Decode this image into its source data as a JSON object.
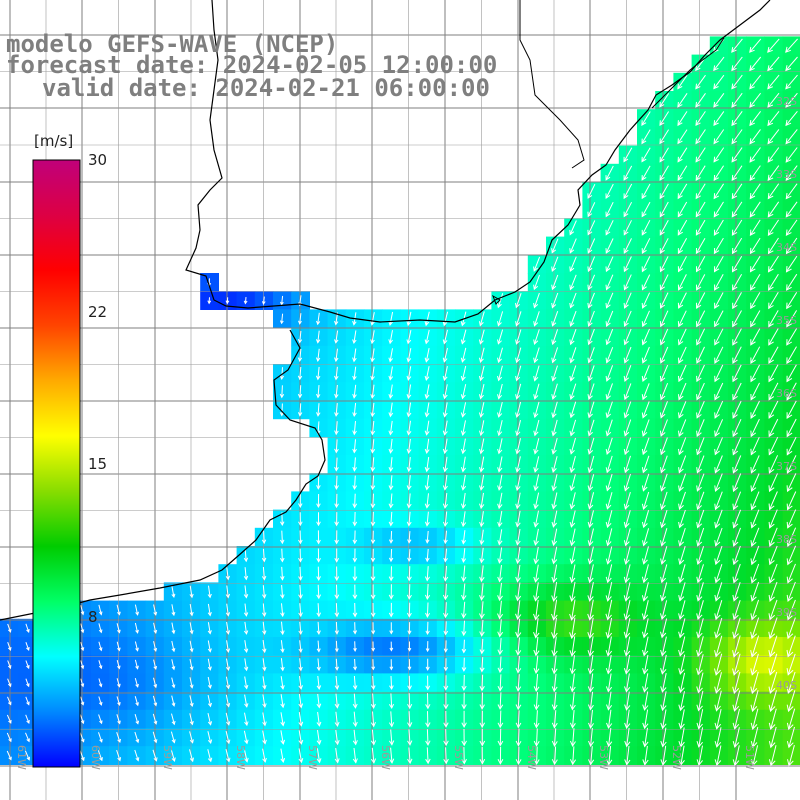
{
  "title": {
    "model": "modelo GEFS-WAVE (NCEP)",
    "forecast": "forecast date: 2024-02-05 12:00:00",
    "valid": "valid date: 2024-02-21 06:00:00"
  },
  "colorbar": {
    "unit": "[m/s]",
    "ticks": [
      "30",
      "22",
      "15",
      "8"
    ],
    "tick_values": [
      30,
      22,
      15,
      8
    ],
    "min": 0,
    "max": 30,
    "colors": [
      "#0000ff",
      "#0088ff",
      "#00ffff",
      "#00ff66",
      "#00cc00",
      "#88dd00",
      "#ffff00",
      "#ffaa00",
      "#ff4400",
      "#ff0000",
      "#dd0044",
      "#c0007a"
    ]
  },
  "grid": {
    "lat_labels": [
      "32S",
      "33S",
      "34S",
      "35S",
      "36S",
      "37S",
      "38S",
      "39S",
      "40S"
    ],
    "lon_labels": [
      "61W",
      "60W",
      "59W",
      "58W",
      "57W",
      "56W",
      "55W",
      "54W",
      "53W",
      "52W",
      "51W"
    ]
  },
  "field": {
    "variable": "wind speed",
    "colors": {
      "land": "#ffffff",
      "coast": "#000000",
      "grid": "#7f7f7f",
      "arrow": "#ffffff"
    }
  }
}
